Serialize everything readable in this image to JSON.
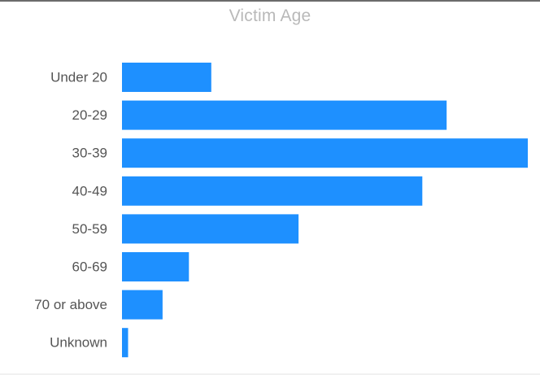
{
  "chart_data": {
    "type": "bar",
    "orientation": "horizontal",
    "title": "Victim Age",
    "categories": [
      "Under 20",
      "20-29",
      "30-39",
      "40-49",
      "50-59",
      "60-69",
      "70 or above",
      "Unknown"
    ],
    "values": [
      22,
      80,
      100,
      74,
      43.5,
      16.5,
      10,
      1.5
    ],
    "xlabel": "",
    "ylabel": "",
    "xlim": [
      0,
      100
    ],
    "grid": false,
    "legend": "none",
    "bar_color": "#1E90FF"
  }
}
